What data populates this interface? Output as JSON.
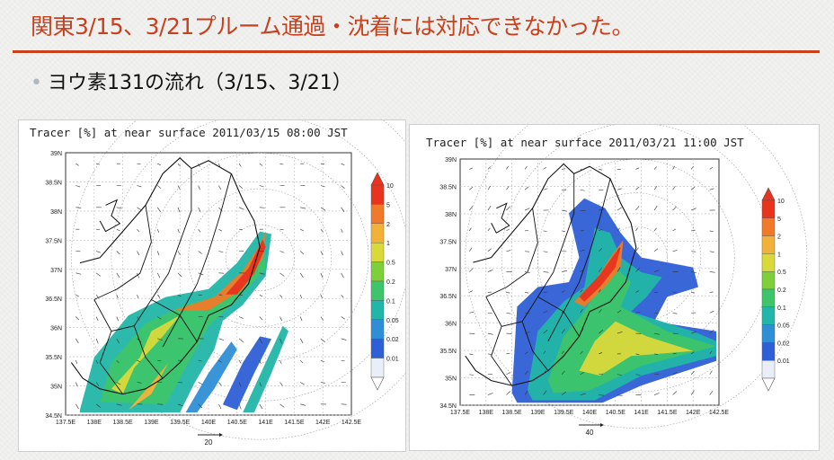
{
  "slide": {
    "title": "関東3/15、3/21プルーム通過・沈着には対応できなかった。",
    "bullet": "ヨウ素131の流れ（3/15、3/21）"
  },
  "maps": [
    {
      "title": "Tracer [%] at near surface 2011/03/15 08:00 JST",
      "y_ticks": [
        "39N",
        "38.5N",
        "38N",
        "37.5N",
        "37N",
        "36.5N",
        "36N",
        "35.5N",
        "35N",
        "34.5N"
      ],
      "x_ticks": [
        "137.5E",
        "138E",
        "138.5E",
        "139E",
        "139.5E",
        "140E",
        "140.5E",
        "141E",
        "141.5E",
        "142E",
        "142.5E"
      ],
      "vector_ref": "20",
      "colorbar": [
        "10",
        "5",
        "2",
        "1",
        "0.5",
        "0.2",
        "0.1",
        "0.05",
        "0.02",
        "0.01"
      ]
    },
    {
      "title": "Tracer [%] at near surface 2011/03/21 11:00 JST",
      "y_ticks": [
        "39N",
        "38.5N",
        "38N",
        "37.5N",
        "37N",
        "36.5N",
        "36N",
        "35.5N",
        "35N",
        "34.5N"
      ],
      "x_ticks": [
        "137.5E",
        "138E",
        "138.5E",
        "139E",
        "139.5E",
        "140E",
        "140.5E",
        "141E",
        "141.5E",
        "142E",
        "142.5E"
      ],
      "vector_ref": "40",
      "colorbar": [
        "10",
        "5",
        "2",
        "1",
        "0.5",
        "0.2",
        "0.1",
        "0.05",
        "0.02",
        "0.01"
      ]
    }
  ],
  "colors": {
    "accent": "#c8411f",
    "scale": [
      "#e8331f",
      "#f07a2a",
      "#f2b23a",
      "#d9d93a",
      "#7fcf3a",
      "#3ec46a",
      "#22b6a8",
      "#2f8fd6",
      "#2f5fd6",
      "#e9eef9"
    ]
  }
}
